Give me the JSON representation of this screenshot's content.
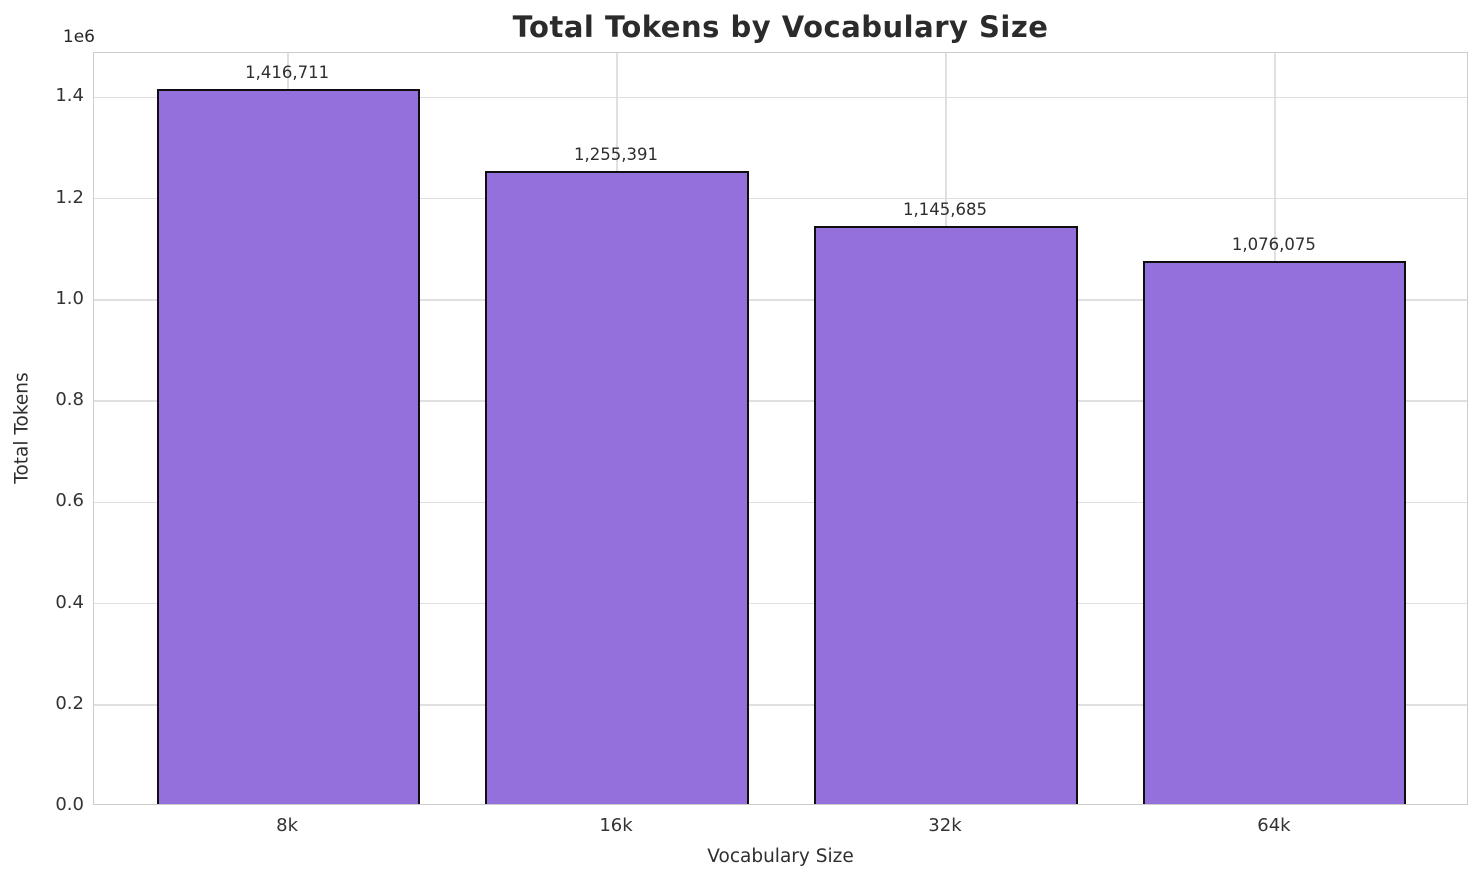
{
  "chart_data": {
    "type": "bar",
    "title": "Total Tokens by Vocabulary Size",
    "xlabel": "Vocabulary Size",
    "ylabel": "Total Tokens",
    "y_offset_label": "1e6",
    "categories": [
      "8k",
      "16k",
      "32k",
      "64k"
    ],
    "values": [
      1416711,
      1255391,
      1145685,
      1076075
    ],
    "bar_value_labels": [
      "1,416,711",
      "1,255,391",
      "1,145,685",
      "1,076,075"
    ],
    "ylim": [
      0,
      1487547
    ],
    "yticks": [
      0,
      200000,
      400000,
      600000,
      800000,
      1000000,
      1200000,
      1400000
    ],
    "ytick_labels": [
      "0.0",
      "0.2",
      "0.4",
      "0.6",
      "0.8",
      "1.0",
      "1.2",
      "1.4"
    ],
    "grid": "both",
    "legend": "none",
    "bar_color": "#9370DB",
    "bar_edge_color": "#0f0f0f",
    "grid_color": "#e0e0e0",
    "spine_color": "#cccccc",
    "text_color": "#262626",
    "background_color": "#ffffff"
  }
}
